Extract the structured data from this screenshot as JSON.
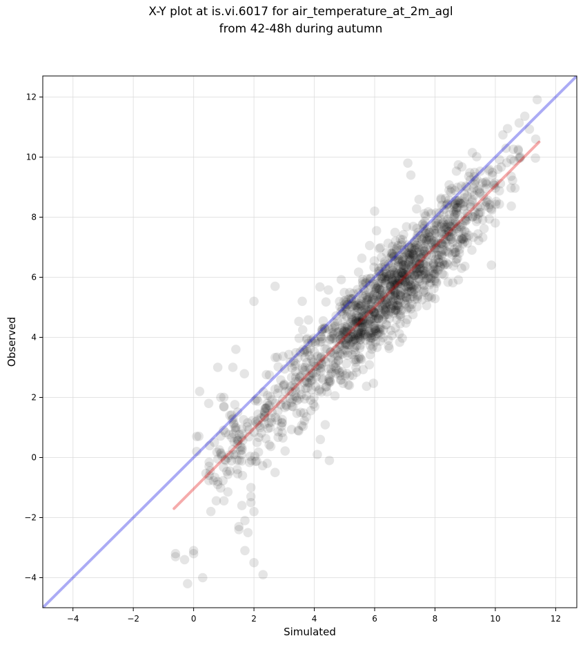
{
  "chart_data": {
    "type": "scatter",
    "title": "X-Y plot at is.vi.6017 for air_temperature_at_2m_agl",
    "subtitle": "from 42-48h during autumn",
    "xlabel": "Simulated",
    "ylabel": "Observed",
    "xlim": [
      -5.0,
      12.7
    ],
    "ylim": [
      -5.0,
      12.7
    ],
    "xticks": [
      -4,
      -2,
      0,
      2,
      4,
      6,
      8,
      10,
      12
    ],
    "yticks": [
      -4,
      -2,
      0,
      2,
      4,
      6,
      8,
      10,
      12
    ],
    "xtick_labels": [
      "−4",
      "−2",
      "0",
      "2",
      "4",
      "6",
      "8",
      "10",
      "12"
    ],
    "ytick_labels": [
      "−4",
      "−2",
      "0",
      "2",
      "4",
      "6",
      "8",
      "10",
      "12"
    ],
    "grid": true,
    "legend": "none",
    "colors": {
      "points": "#000000",
      "identity_line": "#0000e0",
      "regression_line": "#e00000",
      "grid": "#d8d8d8"
    },
    "identity_line": {
      "x": [
        -5.0,
        12.7
      ],
      "y": [
        -5.0,
        12.7
      ]
    },
    "regression_line": {
      "x": [
        -0.65,
        11.45
      ],
      "y": [
        -1.7,
        10.5
      ]
    },
    "points_sample": {
      "note_density": "approx. 1500 semi-transparent points, densest near x=6-7, y=5-6",
      "x": [
        -0.6,
        -0.6,
        -0.3,
        0.0,
        0.0,
        -0.2,
        0.3,
        0.8,
        0.8,
        1.0,
        1.3,
        1.4,
        1.5,
        1.5,
        1.6,
        1.7,
        1.7,
        1.8,
        1.9,
        1.9,
        1.9,
        2.0,
        2.0,
        2.1,
        2.3,
        0.1,
        0.1,
        0.2,
        0.5,
        0.8,
        0.9,
        1.0,
        1.2,
        1.4,
        2.0,
        2.7,
        3.6,
        4.1,
        4.2,
        4.5,
        6.0,
        7.1,
        7.2,
        2.6,
        2.7
      ],
      "y": [
        -3.3,
        -3.2,
        -3.4,
        -3.1,
        -3.2,
        -4.2,
        -4.0,
        -0.8,
        -0.9,
        2.0,
        3.0,
        3.6,
        -2.3,
        -2.4,
        -1.6,
        -2.1,
        -3.1,
        -2.5,
        -1.0,
        -1.5,
        -1.3,
        -3.5,
        -1.8,
        0.5,
        -3.9,
        0.2,
        0.7,
        2.2,
        1.8,
        3.0,
        2.0,
        1.7,
        1.4,
        1.0,
        5.2,
        5.7,
        5.2,
        0.1,
        0.6,
        -0.1,
        8.2,
        9.8,
        9.4,
        1.5,
        -0.5
      ]
    }
  }
}
